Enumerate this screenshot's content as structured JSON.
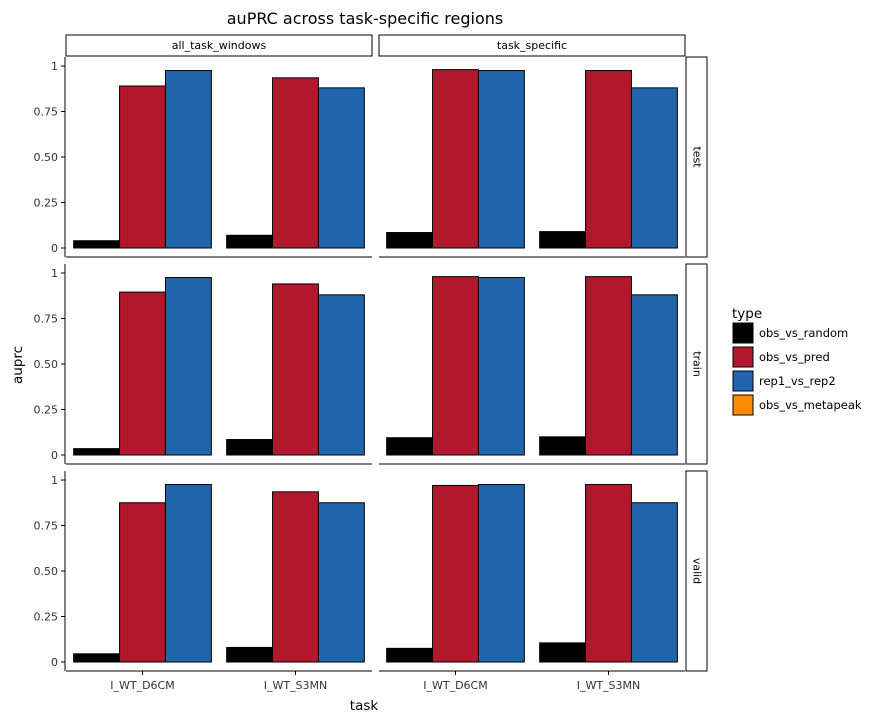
{
  "chart_data": {
    "type": "bar",
    "title": "auPRC across task-specific regions",
    "xlabel": "task",
    "ylabel": "auprc",
    "ylim": [
      0,
      1
    ],
    "yticks": [
      "0",
      "0.25",
      "0.50",
      "0.75",
      "1"
    ],
    "categories": [
      "I_WT_D6CM",
      "I_WT_S3MN"
    ],
    "facet_cols": [
      "all_task_windows",
      "task_specific"
    ],
    "facet_rows": [
      "test",
      "train",
      "valid"
    ],
    "legend": {
      "title": "type",
      "position": "right",
      "entries": [
        {
          "name": "obs_vs_random",
          "color": "#000000"
        },
        {
          "name": "obs_vs_pred",
          "color": "#b2182b"
        },
        {
          "name": "rep1_vs_rep2",
          "color": "#2166ac"
        },
        {
          "name": "obs_vs_metapeak",
          "color": "#ff8c00"
        }
      ]
    },
    "panels": [
      {
        "row": "test",
        "col": "all_task_windows",
        "series": [
          {
            "name": "obs_vs_random",
            "values": [
              0.04,
              0.07
            ]
          },
          {
            "name": "obs_vs_pred",
            "values": [
              0.89,
              0.935
            ]
          },
          {
            "name": "rep1_vs_rep2",
            "values": [
              0.975,
              0.88
            ]
          }
        ]
      },
      {
        "row": "test",
        "col": "task_specific",
        "series": [
          {
            "name": "obs_vs_random",
            "values": [
              0.085,
              0.09
            ]
          },
          {
            "name": "obs_vs_pred",
            "values": [
              0.98,
              0.975
            ]
          },
          {
            "name": "rep1_vs_rep2",
            "values": [
              0.975,
              0.88
            ]
          }
        ]
      },
      {
        "row": "train",
        "col": "all_task_windows",
        "series": [
          {
            "name": "obs_vs_random",
            "values": [
              0.035,
              0.085
            ]
          },
          {
            "name": "obs_vs_pred",
            "values": [
              0.895,
              0.94
            ]
          },
          {
            "name": "rep1_vs_rep2",
            "values": [
              0.975,
              0.88
            ]
          }
        ]
      },
      {
        "row": "train",
        "col": "task_specific",
        "series": [
          {
            "name": "obs_vs_random",
            "values": [
              0.095,
              0.1
            ]
          },
          {
            "name": "obs_vs_pred",
            "values": [
              0.98,
              0.98
            ]
          },
          {
            "name": "rep1_vs_rep2",
            "values": [
              0.975,
              0.88
            ]
          }
        ]
      },
      {
        "row": "valid",
        "col": "all_task_windows",
        "series": [
          {
            "name": "obs_vs_random",
            "values": [
              0.045,
              0.08
            ]
          },
          {
            "name": "obs_vs_pred",
            "values": [
              0.875,
              0.935
            ]
          },
          {
            "name": "rep1_vs_rep2",
            "values": [
              0.975,
              0.875
            ]
          }
        ]
      },
      {
        "row": "valid",
        "col": "task_specific",
        "series": [
          {
            "name": "obs_vs_random",
            "values": [
              0.075,
              0.105
            ]
          },
          {
            "name": "obs_vs_pred",
            "values": [
              0.97,
              0.975
            ]
          },
          {
            "name": "rep1_vs_rep2",
            "values": [
              0.975,
              0.875
            ]
          }
        ]
      }
    ]
  }
}
